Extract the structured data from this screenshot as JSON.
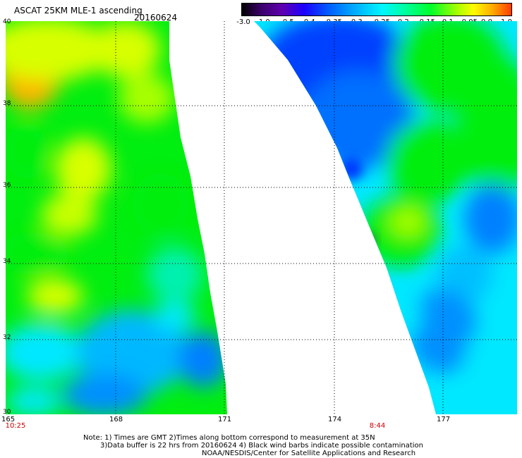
{
  "header": {
    "title": "ASCAT 25KM MLE-1 ascending",
    "date": "20160624"
  },
  "colorbar": {
    "ticks": [
      "-3.0",
      "-1.0",
      "-0.5",
      "-0.4",
      "-0.35",
      "-0.3",
      "-0.25",
      "-0.2",
      "-0.15",
      "-0.1",
      "-0.05",
      "0.0",
      "1.0"
    ]
  },
  "axes": {
    "lon_labels": [
      "165",
      "168",
      "171",
      "174",
      "177"
    ],
    "lat_labels": [
      "40",
      "38",
      "36",
      "34",
      "32",
      "30"
    ]
  },
  "times": {
    "left": "10:25",
    "right": "8:44"
  },
  "notes": {
    "line1": "Note: 1) Times are GMT 2)Times along bottom correspond to measurement at 35N",
    "line2": "3)Data buffer is 22 hrs from 20160624 4) Black wind barbs indicate possible contamination",
    "line3": "NOAA/NESDIS/Center for Satellite Applications and Research"
  },
  "colors": {
    "green": "#00ee10",
    "yellow": "#d8ff00",
    "orange": "#ffb400",
    "cyan": "#00e8ff",
    "blue": "#0080ff",
    "deep_blue": "#0030ff",
    "purple": "#3a0070"
  }
}
